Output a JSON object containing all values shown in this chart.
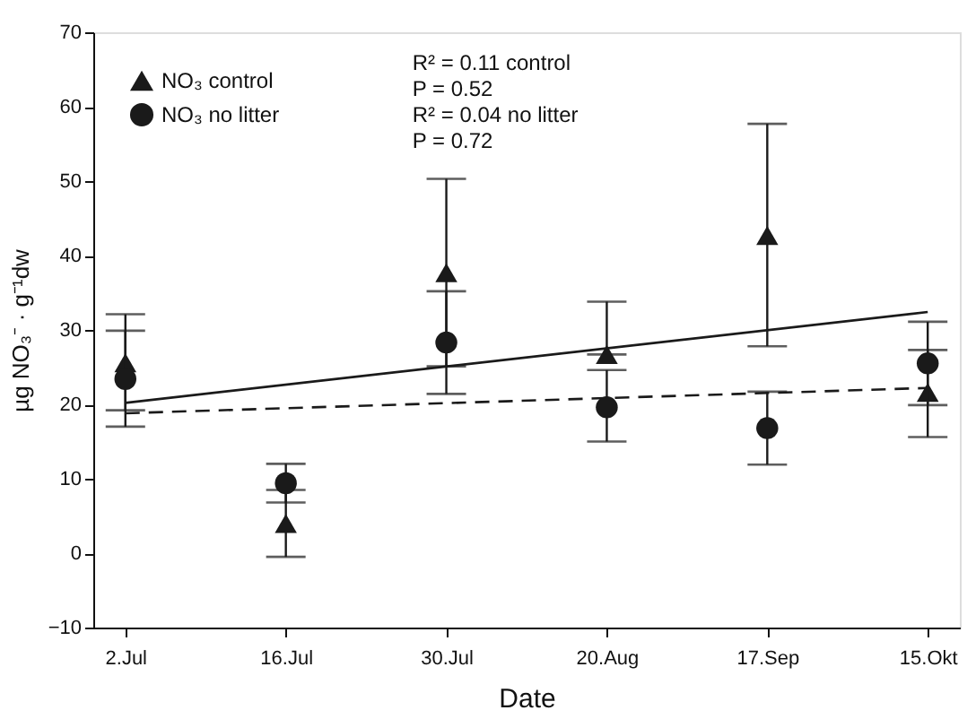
{
  "chart_data": {
    "type": "scatter",
    "xlabel": "Date",
    "ylabel": "µg NO₃⁻ · g⁻¹dw",
    "categories": [
      "2.Jul",
      "16.Jul",
      "30.Jul",
      "20.Aug",
      "17.Sep",
      "15.Okt"
    ],
    "ylim": [
      -10,
      70
    ],
    "yticks": [
      -10,
      0,
      10,
      20,
      30,
      40,
      50,
      60,
      70
    ],
    "grid": false,
    "legend": "top left",
    "series": [
      {
        "name": "NO₃ control",
        "color": "#1a1a1a",
        "marker": "triangle",
        "values": [
          25.6,
          4,
          37.7,
          26.7,
          42.7,
          21.6
        ],
        "errors": [
          [
            19.2,
            32.1
          ],
          [
            -0.5,
            8.5
          ],
          [
            25.1,
            50.3
          ],
          [
            26.7,
            33.8
          ],
          [
            27.8,
            57.7
          ],
          [
            15.6,
            27.3
          ]
        ]
      },
      {
        "name": "NO₃ no litter",
        "color": "#1a1a1a",
        "marker": "circle",
        "values": [
          23.4,
          9.4,
          28.3,
          19.6,
          16.8,
          25.5
        ],
        "errors": [
          [
            17.0,
            29.9
          ],
          [
            6.8,
            12.0
          ],
          [
            21.4,
            35.2
          ],
          [
            15.0,
            24.6
          ],
          [
            11.9,
            21.7
          ],
          [
            19.9,
            31.1
          ]
        ]
      },
      {
        "type": "line",
        "color": "#1a1a1a",
        "line_style": "solid",
        "marker": "none",
        "x": [
          "2.Jul",
          "15.Okt"
        ],
        "values": [
          20.2,
          32.4
        ]
      },
      {
        "type": "line",
        "color": "#1a1a1a",
        "line_style": "dashed",
        "marker": "none",
        "x": [
          "2.Jul",
          "15.Okt"
        ],
        "values": [
          18.8,
          22.2
        ]
      }
    ],
    "annotations": [
      "R² =  0.11 control",
      "P =  0.52",
      "R² =  0.04 no litter",
      "P =  0.72"
    ]
  }
}
